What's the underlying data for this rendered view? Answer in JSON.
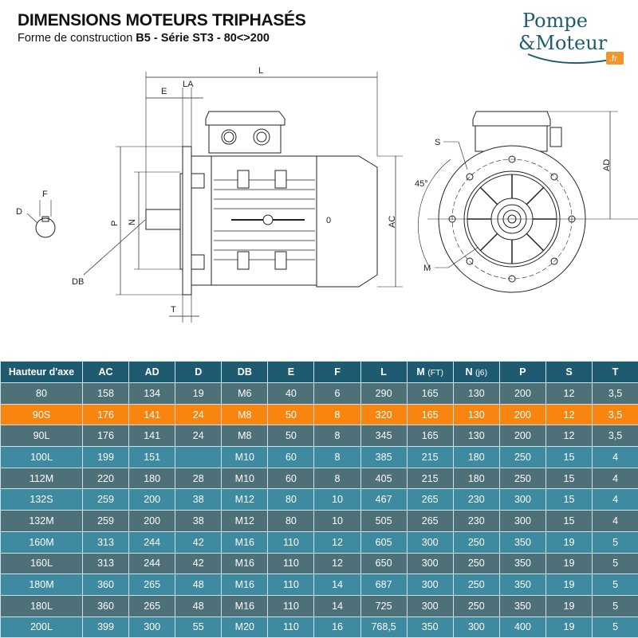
{
  "header": {
    "title": "DIMENSIONS MOTEURS TRIPHASÉS",
    "subtitle_prefix": "Forme de construction ",
    "subtitle_bold": "B5 - Série ST3 - 80<>200"
  },
  "logo": {
    "line1": "Pompe",
    "line2": "&Moteur",
    "badge": ".fr",
    "colors": {
      "text": "#1f5b70",
      "badge": "#f0962a"
    }
  },
  "drawing_labels": {
    "L": "L",
    "E": "E",
    "LA": "LA",
    "P": "P",
    "N": "N",
    "AC": "AC",
    "T": "T",
    "DB": "DB",
    "D": "D",
    "F": "F",
    "S": "S",
    "M": "M",
    "AD": "AD",
    "angle": "45°",
    "O": "0"
  },
  "colors": {
    "header": "#1f5b70",
    "row_dark": "#4e7079",
    "row_light": "#3e8aa0",
    "highlight": "#f7850f"
  },
  "table": {
    "columns": [
      {
        "main": "Hauteur d'axe"
      },
      {
        "main": "AC"
      },
      {
        "main": "AD"
      },
      {
        "main": "D"
      },
      {
        "main": "DB"
      },
      {
        "main": "E"
      },
      {
        "main": "F"
      },
      {
        "main": "L"
      },
      {
        "main": "M",
        "sub": "(FT)"
      },
      {
        "main": "N",
        "sub": "(j6)"
      },
      {
        "main": "P"
      },
      {
        "main": "S"
      },
      {
        "main": "T"
      }
    ],
    "rows": [
      {
        "style": "dark",
        "cells": [
          "80",
          "158",
          "134",
          "19",
          "M6",
          "40",
          "6",
          "290",
          "165",
          "130",
          "200",
          "12",
          "3,5"
        ]
      },
      {
        "style": "hl",
        "cells": [
          "90S",
          "176",
          "141",
          "24",
          "M8",
          "50",
          "8",
          "320",
          "165",
          "130",
          "200",
          "12",
          "3,5"
        ]
      },
      {
        "style": "dark",
        "cells": [
          "90L",
          "176",
          "141",
          "24",
          "M8",
          "50",
          "8",
          "345",
          "165",
          "130",
          "200",
          "12",
          "3,5"
        ]
      },
      {
        "style": "light",
        "cells": [
          "100L",
          "199",
          "151",
          "",
          "M10",
          "60",
          "8",
          "385",
          "215",
          "180",
          "250",
          "15",
          "4"
        ]
      },
      {
        "style": "dark",
        "cells": [
          "112M",
          "220",
          "180",
          "28",
          "M10",
          "60",
          "8",
          "405",
          "215",
          "180",
          "250",
          "15",
          "4"
        ]
      },
      {
        "style": "light",
        "cells": [
          "132S",
          "259",
          "200",
          "38",
          "M12",
          "80",
          "10",
          "467",
          "265",
          "230",
          "300",
          "15",
          "4"
        ]
      },
      {
        "style": "dark",
        "cells": [
          "132M",
          "259",
          "200",
          "38",
          "M12",
          "80",
          "10",
          "505",
          "265",
          "230",
          "300",
          "15",
          "4"
        ]
      },
      {
        "style": "light",
        "cells": [
          "160M",
          "313",
          "244",
          "42",
          "M16",
          "110",
          "12",
          "605",
          "300",
          "250",
          "350",
          "19",
          "5"
        ]
      },
      {
        "style": "dark",
        "cells": [
          "160L",
          "313",
          "244",
          "42",
          "M16",
          "110",
          "12",
          "650",
          "300",
          "250",
          "350",
          "19",
          "5"
        ]
      },
      {
        "style": "light",
        "cells": [
          "180M",
          "360",
          "265",
          "48",
          "M16",
          "110",
          "14",
          "687",
          "300",
          "250",
          "350",
          "19",
          "5"
        ]
      },
      {
        "style": "dark",
        "cells": [
          "180L",
          "360",
          "265",
          "48",
          "M16",
          "110",
          "14",
          "725",
          "300",
          "250",
          "350",
          "19",
          "5"
        ]
      },
      {
        "style": "light",
        "cells": [
          "200L",
          "399",
          "300",
          "55",
          "M20",
          "110",
          "16",
          "768,5",
          "350",
          "300",
          "400",
          "19",
          "5"
        ]
      }
    ]
  }
}
